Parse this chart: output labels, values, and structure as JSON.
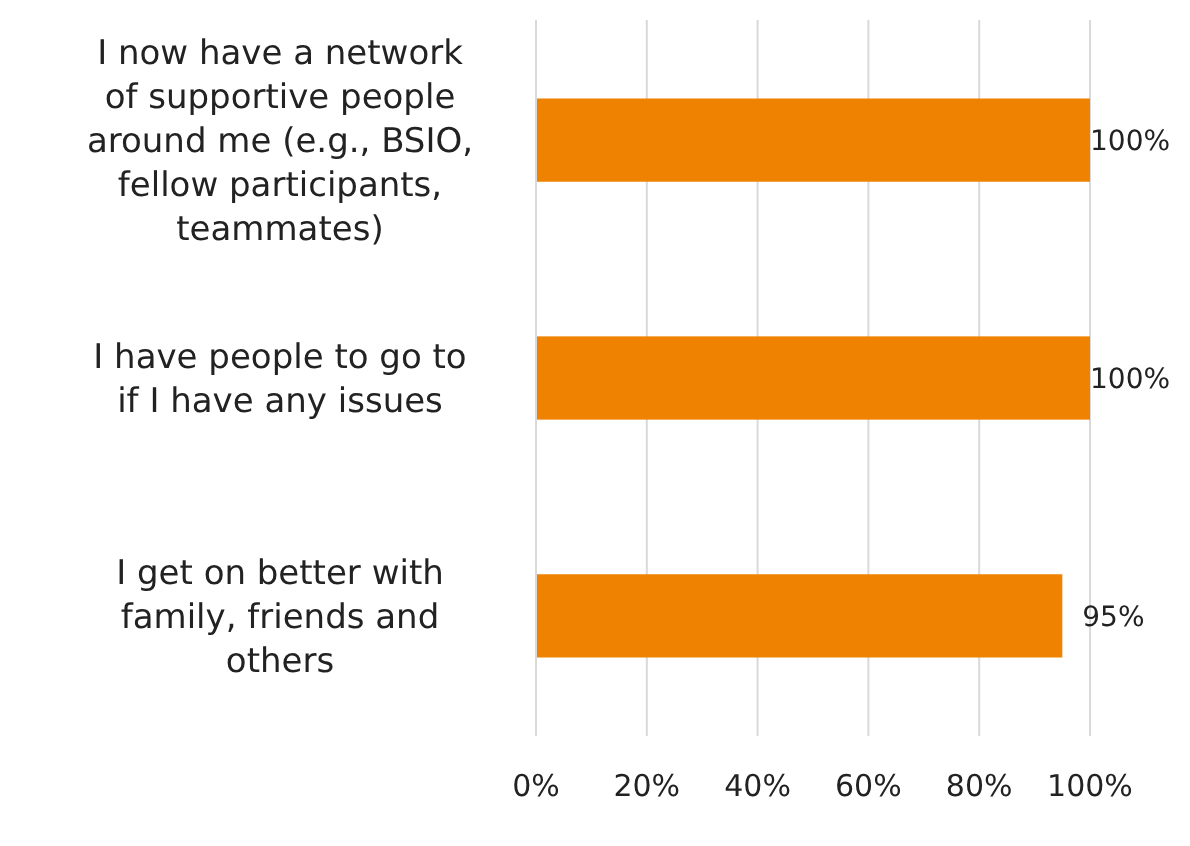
{
  "chart_data": {
    "type": "bar",
    "orientation": "horizontal",
    "categories": [
      "I now have a network of supportive people around me (e.g., BSIO, fellow participants, teammates)",
      "I have people to go to if I have any issues",
      "I get on better with family, friends and others"
    ],
    "values": [
      100,
      100,
      95
    ],
    "color": "#ef8200",
    "value_labels": [
      "100%",
      "100%",
      "95%"
    ],
    "xlim": [
      0,
      100
    ],
    "xticks": [
      {
        "value": 0,
        "label": "0%"
      },
      {
        "value": 20,
        "label": "20%"
      },
      {
        "value": 40,
        "label": "40%"
      },
      {
        "value": 60,
        "label": "60%"
      },
      {
        "value": 80,
        "label": "80%"
      },
      {
        "value": 100,
        "label": "100%"
      }
    ],
    "grid": "x"
  }
}
